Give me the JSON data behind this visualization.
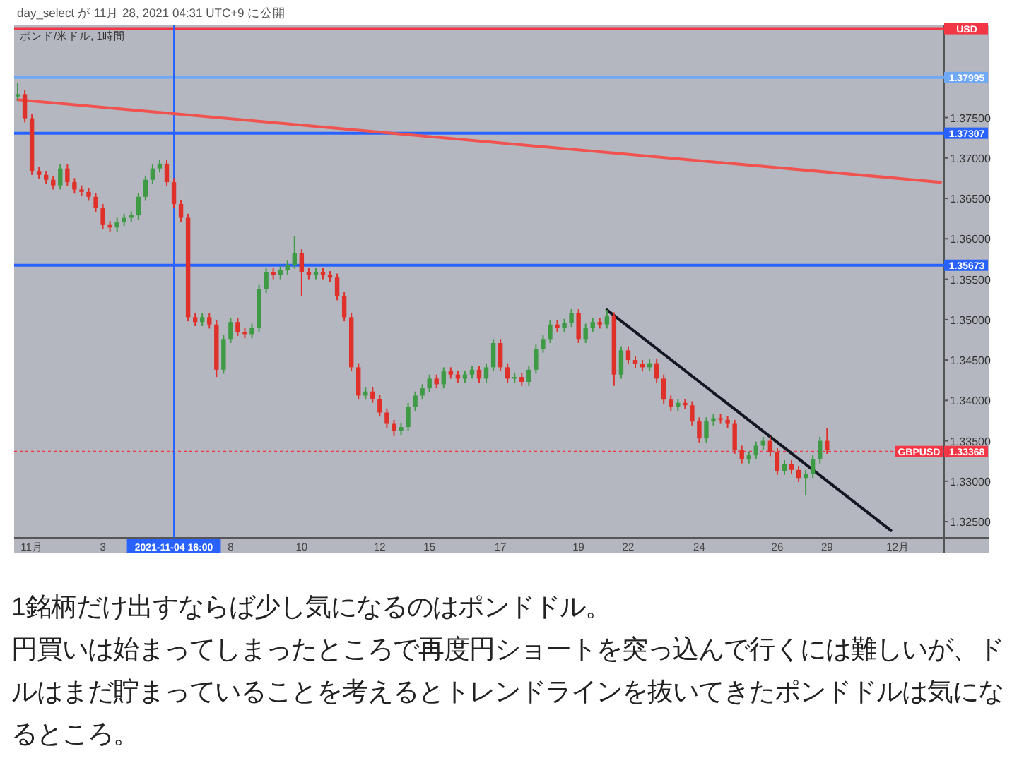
{
  "chart_data": {
    "type": "candlestick",
    "title": "day_select が 11月 28, 2021 04:31 UTC+9 に公開",
    "subtitle": "ポンド/米ドル, 1時間",
    "categories": [
      null,
      null,
      "11月",
      null,
      null,
      null,
      null,
      null,
      null,
      null,
      null,
      null,
      "3",
      null,
      null,
      null,
      null,
      null,
      null,
      null,
      null,
      null,
      "2021-11-04 16:00",
      null,
      null,
      null,
      null,
      null,
      null,
      null,
      "8",
      null,
      null,
      null,
      null,
      null,
      null,
      null,
      null,
      null,
      "10",
      null,
      null,
      null,
      null,
      null,
      null,
      null,
      null,
      null,
      null,
      "12",
      null,
      null,
      null,
      null,
      null,
      null,
      "15",
      null,
      null,
      null,
      null,
      null,
      null,
      null,
      null,
      null,
      "17",
      null,
      null,
      null,
      null,
      null,
      null,
      null,
      null,
      null,
      null,
      "19",
      null,
      null,
      null,
      null,
      null,
      null,
      "22",
      null,
      null,
      null,
      null,
      null,
      null,
      null,
      null,
      null,
      "24",
      null,
      null,
      null,
      null,
      null,
      null,
      null,
      null,
      null,
      null,
      "26",
      null,
      null,
      null,
      null,
      null,
      null,
      "29",
      null,
      null,
      null,
      null,
      null,
      null,
      null,
      null,
      null,
      "12月",
      null,
      null,
      null,
      null,
      null,
      null
    ],
    "ohlc": [
      [
        1.3776,
        1.3793,
        1.3771,
        1.3779
      ],
      [
        1.3779,
        1.3784,
        1.3744,
        1.3749
      ],
      [
        1.3749,
        1.3754,
        1.3679,
        1.3684
      ],
      [
        1.3684,
        1.3689,
        1.3674,
        1.3679
      ],
      [
        1.3679,
        1.3684,
        1.3668,
        1.3673
      ],
      [
        1.3673,
        1.3678,
        1.3661,
        1.3666
      ],
      [
        1.3666,
        1.3692,
        1.3661,
        1.3687
      ],
      [
        1.3687,
        1.3692,
        1.3665,
        1.367
      ],
      [
        1.367,
        1.3675,
        1.3656,
        1.3661
      ],
      [
        1.3661,
        1.3666,
        1.3653,
        1.3658
      ],
      [
        1.3658,
        1.3663,
        1.3647,
        1.3652
      ],
      [
        1.3652,
        1.3657,
        1.3633,
        1.3638
      ],
      [
        1.3638,
        1.3643,
        1.3612,
        1.3617
      ],
      [
        1.3617,
        1.3622,
        1.3609,
        1.3614
      ],
      [
        1.3614,
        1.3626,
        1.3609,
        1.3621
      ],
      [
        1.3621,
        1.3631,
        1.3616,
        1.3626
      ],
      [
        1.3626,
        1.3634,
        1.3621,
        1.3629
      ],
      [
        1.3629,
        1.3657,
        1.3624,
        1.3652
      ],
      [
        1.3652,
        1.3678,
        1.3647,
        1.3673
      ],
      [
        1.3673,
        1.3692,
        1.3668,
        1.3687
      ],
      [
        1.3687,
        1.3698,
        1.3682,
        1.3693
      ],
      [
        1.3693,
        1.3698,
        1.3665,
        1.367
      ],
      [
        1.367,
        1.3675,
        1.3638,
        1.3643
      ],
      [
        1.3643,
        1.3648,
        1.3621,
        1.3626
      ],
      [
        1.3626,
        1.3631,
        1.3498,
        1.3503
      ],
      [
        1.3503,
        1.3508,
        1.3492,
        1.3497
      ],
      [
        1.3497,
        1.3508,
        1.3492,
        1.3503
      ],
      [
        1.3503,
        1.3508,
        1.3489,
        1.3494
      ],
      [
        1.3494,
        1.3499,
        1.3429,
        1.3438
      ],
      [
        1.3438,
        1.3481,
        1.3433,
        1.3476
      ],
      [
        1.3476,
        1.3502,
        1.3471,
        1.3497
      ],
      [
        1.3497,
        1.3502,
        1.348,
        1.3485
      ],
      [
        1.3485,
        1.349,
        1.3477,
        1.3482
      ],
      [
        1.3482,
        1.3495,
        1.3477,
        1.349
      ],
      [
        1.349,
        1.3543,
        1.3485,
        1.3538
      ],
      [
        1.3538,
        1.3564,
        1.3533,
        1.3559
      ],
      [
        1.3559,
        1.3564,
        1.355,
        1.3555
      ],
      [
        1.3555,
        1.3566,
        1.355,
        1.3561
      ],
      [
        1.3561,
        1.3573,
        1.3556,
        1.3568
      ],
      [
        1.3568,
        1.3603,
        1.3563,
        1.3582
      ],
      [
        1.3582,
        1.3587,
        1.3529,
        1.3559
      ],
      [
        1.3559,
        1.3564,
        1.355,
        1.3555
      ],
      [
        1.3555,
        1.3564,
        1.355,
        1.3559
      ],
      [
        1.3559,
        1.3564,
        1.355,
        1.3555
      ],
      [
        1.3555,
        1.356,
        1.3547,
        1.3552
      ],
      [
        1.3552,
        1.3557,
        1.3524,
        1.3529
      ],
      [
        1.3529,
        1.3534,
        1.3498,
        1.3503
      ],
      [
        1.3503,
        1.3508,
        1.3436,
        1.3441
      ],
      [
        1.3441,
        1.3446,
        1.3401,
        1.3406
      ],
      [
        1.3406,
        1.3416,
        1.3401,
        1.3411
      ],
      [
        1.3411,
        1.3416,
        1.3397,
        1.3402
      ],
      [
        1.3402,
        1.3407,
        1.338,
        1.3385
      ],
      [
        1.3385,
        1.339,
        1.3366,
        1.3371
      ],
      [
        1.3371,
        1.3376,
        1.3356,
        1.3362
      ],
      [
        1.3362,
        1.3372,
        1.3357,
        1.3367
      ],
      [
        1.3367,
        1.3397,
        1.3362,
        1.3392
      ],
      [
        1.3392,
        1.3411,
        1.3387,
        1.3406
      ],
      [
        1.3406,
        1.342,
        1.3401,
        1.3415
      ],
      [
        1.3415,
        1.3432,
        1.341,
        1.3427
      ],
      [
        1.3427,
        1.3432,
        1.3415,
        1.342
      ],
      [
        1.342,
        1.3441,
        1.3415,
        1.3436
      ],
      [
        1.3436,
        1.3441,
        1.3427,
        1.3432
      ],
      [
        1.3432,
        1.3437,
        1.3422,
        1.3427
      ],
      [
        1.3427,
        1.3437,
        1.3422,
        1.3432
      ],
      [
        1.3432,
        1.3443,
        1.3427,
        1.3438
      ],
      [
        1.3438,
        1.3443,
        1.3422,
        1.3427
      ],
      [
        1.3427,
        1.3446,
        1.3422,
        1.3441
      ],
      [
        1.3441,
        1.3476,
        1.3436,
        1.3471
      ],
      [
        1.3471,
        1.3476,
        1.3436,
        1.3441
      ],
      [
        1.3441,
        1.3446,
        1.3422,
        1.3427
      ],
      [
        1.3427,
        1.3434,
        1.3422,
        1.3429
      ],
      [
        1.3429,
        1.3434,
        1.3418,
        1.3423
      ],
      [
        1.3423,
        1.3443,
        1.3418,
        1.3438
      ],
      [
        1.3438,
        1.3469,
        1.3433,
        1.3464
      ],
      [
        1.3464,
        1.3481,
        1.3459,
        1.3476
      ],
      [
        1.3476,
        1.3499,
        1.3471,
        1.3494
      ],
      [
        1.3494,
        1.3499,
        1.3485,
        1.349
      ],
      [
        1.349,
        1.3501,
        1.3485,
        1.3496
      ],
      [
        1.3496,
        1.3513,
        1.3491,
        1.3508
      ],
      [
        1.3508,
        1.3513,
        1.3471,
        1.3476
      ],
      [
        1.3476,
        1.3495,
        1.3471,
        1.349
      ],
      [
        1.349,
        1.3502,
        1.3485,
        1.3497
      ],
      [
        1.3497,
        1.3502,
        1.3489,
        1.3494
      ],
      [
        1.3494,
        1.3512,
        1.3489,
        1.3504
      ],
      [
        1.3504,
        1.3509,
        1.3418,
        1.3432
      ],
      [
        1.3432,
        1.3467,
        1.3427,
        1.3462
      ],
      [
        1.3462,
        1.3467,
        1.3445,
        1.345
      ],
      [
        1.345,
        1.3455,
        1.344,
        1.3445
      ],
      [
        1.3445,
        1.345,
        1.3436,
        1.3441
      ],
      [
        1.3441,
        1.3451,
        1.3436,
        1.3446
      ],
      [
        1.3446,
        1.3451,
        1.3422,
        1.3427
      ],
      [
        1.3427,
        1.3432,
        1.3396,
        1.3401
      ],
      [
        1.3401,
        1.3406,
        1.3387,
        1.3392
      ],
      [
        1.3392,
        1.3402,
        1.3387,
        1.3397
      ],
      [
        1.3397,
        1.3402,
        1.3389,
        1.3394
      ],
      [
        1.3394,
        1.3399,
        1.3369,
        1.3374
      ],
      [
        1.3374,
        1.3379,
        1.3348,
        1.3353
      ],
      [
        1.3353,
        1.3379,
        1.3348,
        1.3374
      ],
      [
        1.3374,
        1.3383,
        1.3369,
        1.3378
      ],
      [
        1.3378,
        1.3383,
        1.3371,
        1.3376
      ],
      [
        1.3376,
        1.3381,
        1.3366,
        1.3371
      ],
      [
        1.3371,
        1.3376,
        1.3334,
        1.3339
      ],
      [
        1.3339,
        1.3344,
        1.3322,
        1.3327
      ],
      [
        1.3327,
        1.3337,
        1.3322,
        1.3332
      ],
      [
        1.3332,
        1.3349,
        1.3327,
        1.3344
      ],
      [
        1.3344,
        1.3355,
        1.3339,
        1.335
      ],
      [
        1.335,
        1.3355,
        1.3331,
        1.3336
      ],
      [
        1.3336,
        1.3341,
        1.3308,
        1.3313
      ],
      [
        1.3313,
        1.3326,
        1.3308,
        1.3321
      ],
      [
        1.3321,
        1.3326,
        1.3309,
        1.3314
      ],
      [
        1.3314,
        1.3319,
        1.3299,
        1.3304
      ],
      [
        1.3304,
        1.3314,
        1.3283,
        1.3309
      ],
      [
        1.3309,
        1.3332,
        1.3304,
        1.3327
      ],
      [
        1.3327,
        1.3355,
        1.3322,
        1.335
      ],
      [
        1.335,
        1.3366,
        1.3334,
        1.3339
      ],
      null,
      null,
      null,
      null,
      null,
      null,
      null,
      null,
      null,
      null,
      null,
      null,
      null,
      null,
      null,
      null
    ],
    "series": [
      {
        "type": "line",
        "color": "#f0524f",
        "values": [
          1.3772,
          null,
          null,
          null,
          null,
          null,
          null,
          null,
          null,
          null,
          null,
          null,
          null,
          null,
          null,
          null,
          null,
          null,
          null,
          null,
          null,
          null,
          null,
          null,
          null,
          null,
          null,
          null,
          null,
          null,
          null,
          null,
          null,
          null,
          null,
          null,
          null,
          null,
          null,
          null,
          null,
          null,
          null,
          null,
          null,
          null,
          null,
          null,
          null,
          null,
          null,
          null,
          null,
          null,
          null,
          null,
          null,
          null,
          null,
          null,
          null,
          null,
          null,
          null,
          null,
          null,
          null,
          null,
          null,
          null,
          null,
          null,
          null,
          null,
          null,
          null,
          null,
          null,
          null,
          null,
          null,
          null,
          null,
          null,
          null,
          null,
          null,
          null,
          null,
          null,
          null,
          null,
          null,
          null,
          null,
          null,
          null,
          null,
          null,
          null,
          null,
          null,
          null,
          null,
          null,
          null,
          null,
          null,
          null,
          null,
          null,
          null,
          null,
          null,
          null,
          null,
          null,
          null,
          null,
          null,
          null,
          null,
          null,
          null,
          null,
          null,
          null,
          null,
          null,
          null,
          1.367
        ]
      },
      {
        "type": "line",
        "color": "#131722",
        "values": [
          null,
          null,
          null,
          null,
          null,
          null,
          null,
          null,
          null,
          null,
          null,
          null,
          null,
          null,
          null,
          null,
          null,
          null,
          null,
          null,
          null,
          null,
          null,
          null,
          null,
          null,
          null,
          null,
          null,
          null,
          null,
          null,
          null,
          null,
          null,
          null,
          null,
          null,
          null,
          null,
          null,
          null,
          null,
          null,
          null,
          null,
          null,
          null,
          null,
          null,
          null,
          null,
          null,
          null,
          null,
          null,
          null,
          null,
          null,
          null,
          null,
          null,
          null,
          null,
          null,
          null,
          null,
          null,
          null,
          null,
          null,
          null,
          null,
          null,
          null,
          null,
          null,
          null,
          null,
          null,
          null,
          null,
          null,
          1.3512,
          null,
          null,
          null,
          null,
          null,
          null,
          null,
          null,
          null,
          null,
          null,
          null,
          null,
          null,
          null,
          null,
          null,
          null,
          null,
          null,
          null,
          null,
          null,
          null,
          null,
          null,
          null,
          null,
          null,
          null,
          null,
          null,
          null,
          null,
          null,
          null,
          null,
          null,
          null,
          1.3239,
          null,
          null,
          null,
          null,
          null,
          null,
          null
        ]
      }
    ],
    "ylim": [
      1.323,
      1.3864
    ],
    "yticks": [
      {
        "value": 1.325,
        "label": "1.32500"
      },
      {
        "value": 1.33,
        "label": "1.33000"
      },
      {
        "value": 1.335,
        "label": "1.33500"
      },
      {
        "value": 1.34,
        "label": "1.34000"
      },
      {
        "value": 1.345,
        "label": "1.34500"
      },
      {
        "value": 1.35,
        "label": "1.35000"
      },
      {
        "value": 1.355,
        "label": "1.35500"
      },
      {
        "value": 1.36,
        "label": "1.36000"
      },
      {
        "value": 1.365,
        "label": "1.36500"
      },
      {
        "value": 1.37,
        "label": "1.37000"
      },
      {
        "value": 1.375,
        "label": "1.37500"
      }
    ],
    "ref_lines": [
      {
        "axis": "y",
        "value": 1.386,
        "label": "USD",
        "color": "#f23645"
      },
      {
        "axis": "y",
        "value": 1.37995,
        "label": "1.37995",
        "color": "#6fa8f5"
      },
      {
        "axis": "y",
        "value": 1.37307,
        "label": "1.37307",
        "color": "#2962ff"
      },
      {
        "axis": "y",
        "value": 1.35673,
        "label": "1.35673",
        "color": "#2962ff"
      },
      {
        "axis": "y",
        "value": 1.33368,
        "label": "1.33368",
        "color": "#f23645",
        "line_style": "dotted"
      },
      {
        "axis": "x",
        "value": "2021-11-04 16:00",
        "color": "#2962ff"
      }
    ],
    "annotations": [
      {
        "text": "GBPUSD",
        "y": 1.33368
      },
      "1銘柄だけ出すならば少し気になるのはポンドドル。",
      "円買いは始まってしまったところで再度円ショートを突っ込んで行くには難しいが、ドルはまだ貯まっていることを考えるとトレンドラインを抜いてきたポンドドルは気になるところ。"
    ]
  }
}
